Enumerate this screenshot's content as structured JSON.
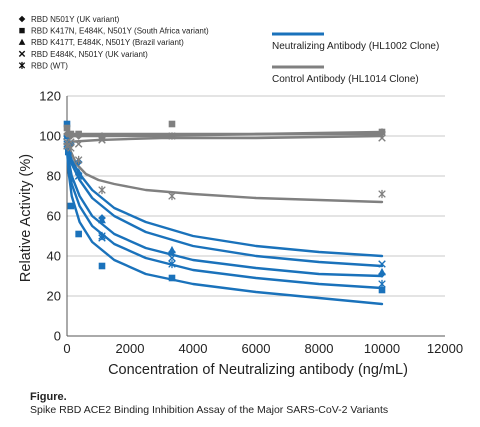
{
  "chart_data": {
    "type": "scatter",
    "xlabel": "Concentration of Neutralizing antibody (ng/mL)",
    "ylabel": "Relative Activity (%)",
    "xlim": [
      0,
      12000
    ],
    "ylim": [
      0,
      120
    ],
    "x_ticks": [
      0,
      2000,
      4000,
      6000,
      8000,
      10000,
      12000
    ],
    "x_tick_labels": [
      "0",
      "2000",
      "4000",
      "6000",
      "8000",
      "10000",
      "12000"
    ],
    "y_ticks": [
      0,
      20,
      40,
      60,
      80,
      100,
      120
    ],
    "y_tick_labels": [
      "0",
      "20",
      "40",
      "60",
      "80",
      "100",
      "120"
    ],
    "grid": "horizontal",
    "legend_placement": "top",
    "marker_legend": [
      {
        "marker": "diamond",
        "label": "RBD N501Y (UK variant)"
      },
      {
        "marker": "square",
        "label": "RBD K417N, E484K, N501Y (South Africa variant)"
      },
      {
        "marker": "triangle",
        "label": "RBD K417T, E484K, N501Y (Brazil variant)"
      },
      {
        "marker": "x",
        "label": "RBD E484K, N501Y (UK variant)"
      },
      {
        "marker": "asterisk",
        "label": "RBD (WT)"
      }
    ],
    "line_legend": [
      {
        "color": "#1a72bb",
        "label": "Neutralizing Antibody (HL1002 Clone)"
      },
      {
        "color": "#808080",
        "label": "Control Antibody (HL1014 Clone)"
      }
    ],
    "series": [
      {
        "marker": "diamond",
        "group": "neutralizing",
        "x": [
          0,
          123,
          370,
          1111,
          3333,
          10000
        ],
        "y": [
          100,
          96,
          87,
          59,
          42,
          31
        ],
        "curve_x": [
          0,
          50,
          150,
          400,
          800,
          1500,
          2500,
          4000,
          6000,
          8000,
          10000
        ],
        "curve_y": [
          95,
          91,
          86,
          78,
          69,
          60,
          52,
          45,
          40,
          37,
          35
        ]
      },
      {
        "marker": "square",
        "group": "neutralizing",
        "x": [
          0,
          41,
          123,
          370,
          1111,
          3333,
          10000
        ],
        "y": [
          106,
          92,
          65,
          51,
          35,
          29,
          23
        ],
        "curve_x": [
          0,
          50,
          150,
          400,
          800,
          1500,
          2500,
          4000,
          6000,
          8000,
          10000
        ],
        "curve_y": [
          93,
          82,
          70,
          57,
          47,
          38,
          31,
          26,
          22,
          19,
          16
        ]
      },
      {
        "marker": "triangle",
        "group": "neutralizing",
        "x": [
          0,
          370,
          1111,
          3333,
          10000
        ],
        "y": [
          100,
          82,
          58,
          43,
          32
        ],
        "curve_x": [
          0,
          50,
          150,
          400,
          800,
          1500,
          2500,
          4000,
          6000,
          8000,
          10000
        ],
        "curve_y": [
          97,
          93,
          88,
          81,
          73,
          64,
          57,
          50,
          45,
          42,
          40
        ]
      },
      {
        "marker": "x",
        "group": "neutralizing",
        "x": [
          0,
          370,
          1111,
          3333,
          10000
        ],
        "y": [
          95,
          80,
          49,
          39,
          36
        ],
        "curve_x": [
          0,
          50,
          150,
          400,
          800,
          1500,
          2500,
          4000,
          6000,
          8000,
          10000
        ],
        "curve_y": [
          94,
          88,
          80,
          70,
          60,
          51,
          44,
          38,
          34,
          31,
          30
        ]
      },
      {
        "marker": "asterisk",
        "group": "neutralizing",
        "x": [
          0,
          370,
          1111,
          3333,
          10000
        ],
        "y": [
          96,
          80,
          50,
          36,
          26
        ],
        "curve_x": [
          0,
          50,
          150,
          400,
          800,
          1500,
          2500,
          4000,
          6000,
          8000,
          10000
        ],
        "curve_y": [
          94,
          86,
          76,
          65,
          55,
          46,
          39,
          33,
          29,
          26,
          24
        ]
      },
      {
        "marker": "diamond",
        "group": "control",
        "x": [
          0,
          123,
          370,
          1111,
          3333,
          10000
        ],
        "y": [
          101,
          100,
          100,
          100,
          100,
          102
        ],
        "curve_x": [
          0,
          1000,
          3000,
          6000,
          10000
        ],
        "curve_y": [
          100,
          100,
          100,
          101,
          102
        ]
      },
      {
        "marker": "square",
        "group": "control",
        "x": [
          0,
          123,
          370,
          1111,
          3333,
          10000
        ],
        "y": [
          104,
          101,
          101,
          99,
          106,
          102
        ],
        "curve_x": [
          0,
          1000,
          3000,
          6000,
          10000
        ],
        "curve_y": [
          101,
          101,
          101,
          101,
          101
        ]
      },
      {
        "marker": "x",
        "group": "control",
        "x": [
          0,
          123,
          370,
          1111,
          3333,
          10000
        ],
        "y": [
          97,
          97,
          96,
          98,
          100,
          99
        ],
        "curve_x": [
          0,
          1000,
          3000,
          6000,
          10000
        ],
        "curve_y": [
          97,
          98,
          99,
          99,
          100
        ]
      },
      {
        "marker": "asterisk",
        "group": "control",
        "x": [
          0,
          123,
          370,
          1111,
          3333,
          10000
        ],
        "y": [
          95,
          94,
          88,
          73,
          70,
          71
        ],
        "curve_x": [
          0,
          100,
          300,
          600,
          1000,
          1500,
          2500,
          4000,
          6000,
          8000,
          10000
        ],
        "curve_y": [
          100,
          93,
          86,
          81,
          78,
          76,
          73,
          71,
          69,
          68,
          67
        ]
      }
    ]
  },
  "caption": {
    "title": "Figure.",
    "text": "Spike RBD ACE2 Binding Inhibition Assay of the Major SARS-CoV-2 Variants"
  }
}
